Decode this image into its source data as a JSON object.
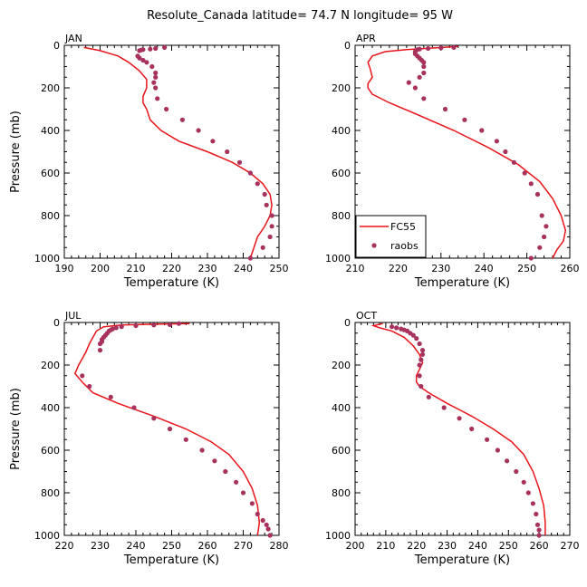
{
  "title": "Resolute_Canada   latitude= 74.7 N longitude= 95 W",
  "colors": {
    "model": "#e8141a",
    "obs": "#a8325e"
  },
  "chart_data": [
    {
      "type": "line",
      "label": "JAN",
      "xlabel": "Temperature (K)",
      "ylabel": "Pressure (mb)",
      "xlim": [
        190,
        250
      ],
      "ylim": [
        1000,
        0
      ],
      "xticks": [
        "190",
        "200",
        "210",
        "220",
        "230",
        "240",
        "250"
      ],
      "yticks": [
        "0",
        "200",
        "400",
        "600",
        "800",
        "1000"
      ],
      "legend": null,
      "series": [
        {
          "kind": "line",
          "x": [
            195.5,
            200,
            205,
            208,
            211,
            213,
            213,
            212,
            212,
            213,
            214,
            217,
            222,
            230,
            237,
            242,
            245.5,
            247.5,
            248,
            247.5,
            246,
            244,
            242
          ],
          "y": [
            10,
            25,
            50,
            80,
            120,
            160,
            200,
            240,
            270,
            300,
            350,
            400,
            450,
            500,
            550,
            600,
            650,
            700,
            750,
            800,
            850,
            900,
            1000
          ]
        },
        {
          "kind": "points",
          "x": [
            218,
            215.5,
            214,
            212,
            211.5,
            211,
            210.5,
            211,
            212,
            213,
            214.5,
            215.5,
            215.5,
            215,
            215.5,
            216,
            218.5,
            223,
            227.5,
            231.5,
            235.5,
            239,
            242,
            244,
            246,
            246.5,
            248,
            248,
            247.5,
            245.5,
            242
          ],
          "y": [
            10,
            15,
            18,
            20,
            22,
            25,
            50,
            60,
            70,
            80,
            100,
            130,
            150,
            175,
            200,
            250,
            300,
            350,
            400,
            450,
            500,
            550,
            600,
            650,
            700,
            750,
            800,
            850,
            900,
            950,
            1000
          ]
        }
      ]
    },
    {
      "type": "line",
      "label": "APR",
      "xlabel": "Temperature (K)",
      "ylabel": "",
      "xlim": [
        210,
        260
      ],
      "ylim": [
        1000,
        0
      ],
      "xticks": [
        "210",
        "220",
        "230",
        "240",
        "250",
        "260"
      ],
      "yticks": [
        "0",
        "200",
        "400",
        "600",
        "800",
        "1000"
      ],
      "legend": {
        "position": "bottom-left",
        "entries": [
          "FC55",
          "raobs"
        ]
      },
      "series": [
        {
          "kind": "line",
          "x": [
            234,
            229,
            222,
            217,
            214,
            213,
            213.5,
            214,
            213,
            213,
            214,
            218,
            225,
            233,
            241,
            248,
            253,
            256,
            258,
            259,
            258.5,
            257,
            256
          ],
          "y": [
            5,
            12,
            20,
            30,
            50,
            80,
            110,
            150,
            180,
            200,
            230,
            270,
            330,
            400,
            480,
            560,
            640,
            720,
            800,
            870,
            920,
            960,
            1000
          ]
        },
        {
          "kind": "points",
          "x": [
            233,
            230,
            227,
            225,
            224.5,
            224,
            224,
            224.5,
            225,
            225.5,
            226,
            226,
            226,
            225,
            222.5,
            224,
            226,
            231,
            235.5,
            239.5,
            243,
            245,
            247,
            249.5,
            251,
            252.5,
            253.5,
            254.5,
            254,
            253,
            251
          ],
          "y": [
            10,
            12,
            15,
            18,
            20,
            30,
            40,
            50,
            60,
            70,
            80,
            100,
            130,
            150,
            175,
            200,
            250,
            300,
            350,
            400,
            450,
            500,
            550,
            600,
            650,
            700,
            800,
            850,
            900,
            950,
            1000
          ]
        }
      ]
    },
    {
      "type": "line",
      "label": "JUL",
      "xlabel": "Temperature (K)",
      "ylabel": "Pressure (mb)",
      "xlim": [
        220,
        280
      ],
      "ylim": [
        1000,
        0
      ],
      "xticks": [
        "220",
        "230",
        "240",
        "250",
        "260",
        "270",
        "280"
      ],
      "yticks": [
        "0",
        "200",
        "400",
        "600",
        "800",
        "1000"
      ],
      "legend": null,
      "series": [
        {
          "kind": "line",
          "x": [
            255,
            245,
            236,
            231,
            229,
            228,
            227,
            226,
            225,
            224,
            223,
            225,
            228,
            235,
            245,
            254,
            261,
            266,
            270,
            272.5,
            274,
            274.5,
            274
          ],
          "y": [
            5,
            8,
            12,
            20,
            40,
            70,
            100,
            140,
            170,
            200,
            240,
            280,
            330,
            380,
            440,
            500,
            560,
            620,
            700,
            780,
            860,
            940,
            1000
          ]
        },
        {
          "kind": "points",
          "x": [
            252,
            249.5,
            245,
            240,
            236,
            234.5,
            233.5,
            233,
            232.5,
            232,
            231.5,
            231,
            230.5,
            230.5,
            230,
            230,
            225,
            227,
            233,
            239.5,
            245,
            249.5,
            254,
            258.5,
            262,
            265,
            268,
            270,
            272.5,
            274,
            275.5,
            276.5,
            277,
            277.5
          ],
          "y": [
            5,
            10,
            12,
            15,
            20,
            25,
            30,
            35,
            40,
            50,
            60,
            70,
            80,
            90,
            100,
            130,
            250,
            300,
            350,
            400,
            450,
            500,
            550,
            600,
            650,
            700,
            750,
            800,
            850,
            900,
            930,
            950,
            970,
            1000
          ]
        }
      ]
    },
    {
      "type": "line",
      "label": "OCT",
      "xlabel": "Temperature (K)",
      "ylabel": "",
      "xlim": [
        200,
        270
      ],
      "ylim": [
        1000,
        0
      ],
      "xticks": [
        "200",
        "210",
        "220",
        "230",
        "240",
        "250",
        "260",
        "270"
      ],
      "yticks": [
        "0",
        "200",
        "400",
        "600",
        "800",
        "1000"
      ],
      "legend": null,
      "series": [
        {
          "kind": "line",
          "x": [
            209,
            206,
            208,
            212,
            216,
            219,
            221,
            222,
            221,
            220,
            220,
            221,
            224,
            230,
            238,
            245,
            251,
            255,
            258,
            260,
            261.5,
            262,
            262
          ],
          "y": [
            5,
            15,
            25,
            40,
            70,
            110,
            150,
            190,
            220,
            250,
            280,
            300,
            330,
            380,
            440,
            500,
            560,
            620,
            700,
            780,
            860,
            940,
            1000
          ]
        },
        {
          "kind": "points",
          "x": [
            212,
            213.5,
            215,
            216,
            217,
            218,
            219,
            220,
            221,
            222,
            222,
            221.5,
            221,
            221,
            221.5,
            224,
            229,
            234,
            238,
            243,
            246.5,
            249.5,
            252.5,
            255,
            256.5,
            258,
            259,
            259.5,
            260,
            260
          ],
          "y": [
            20,
            25,
            30,
            35,
            40,
            50,
            60,
            75,
            100,
            130,
            150,
            175,
            200,
            250,
            300,
            350,
            400,
            450,
            500,
            550,
            600,
            650,
            700,
            750,
            800,
            850,
            900,
            950,
            975,
            1000
          ]
        }
      ]
    }
  ]
}
